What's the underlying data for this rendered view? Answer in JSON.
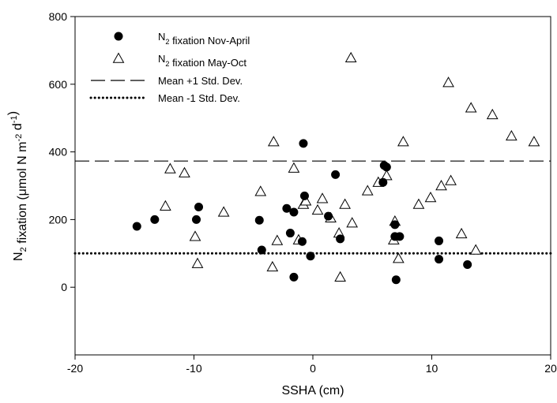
{
  "chart_data": {
    "type": "scatter",
    "xlabel": "SSHA (cm)",
    "ylabel_parts": [
      "N",
      "2",
      " fixation (",
      "μ",
      "mol N m",
      "-2",
      " d",
      "-1",
      ")"
    ],
    "xlim": [
      -20,
      20
    ],
    "ylim": [
      -200,
      800
    ],
    "xticks": [
      "-20",
      "-10",
      "0",
      "10",
      "20"
    ],
    "yticks": [
      "0",
      "200",
      "400",
      "600",
      "800"
    ],
    "grid": false,
    "legend_position": "top-left",
    "legend": [
      {
        "parts": [
          "N",
          "2",
          " fixation Nov-April"
        ],
        "marker": "filled-circle"
      },
      {
        "parts": [
          "N",
          "2",
          " fixation May-Oct"
        ],
        "marker": "open-triangle"
      },
      {
        "parts": [
          "Mean +1 Std. Dev."
        ],
        "marker": "dashed-line"
      },
      {
        "parts": [
          "Mean -1 Std. Dev."
        ],
        "marker": "dotted-line"
      }
    ],
    "series": [
      {
        "name": "N2 fixation Nov-April",
        "marker": "filled-circle",
        "points": [
          [
            -14.8,
            180
          ],
          [
            -13.3,
            200
          ],
          [
            -9.8,
            200
          ],
          [
            -9.6,
            237
          ],
          [
            -4.5,
            198
          ],
          [
            -4.3,
            110
          ],
          [
            -2.2,
            233
          ],
          [
            -1.9,
            160
          ],
          [
            -1.6,
            222
          ],
          [
            -1.6,
            30
          ],
          [
            -0.9,
            135
          ],
          [
            -0.8,
            425
          ],
          [
            -0.7,
            270
          ],
          [
            -0.2,
            92
          ],
          [
            1.3,
            210
          ],
          [
            1.9,
            333
          ],
          [
            2.3,
            143
          ],
          [
            5.9,
            310
          ],
          [
            6.0,
            360
          ],
          [
            6.2,
            355
          ],
          [
            6.9,
            185
          ],
          [
            6.9,
            150
          ],
          [
            7.0,
            22
          ],
          [
            7.3,
            150
          ],
          [
            10.6,
            137
          ],
          [
            10.6,
            83
          ],
          [
            13.0,
            67
          ]
        ]
      },
      {
        "name": "N2 fixation May-Oct",
        "marker": "open-triangle",
        "points": [
          [
            -12.4,
            240
          ],
          [
            -12.0,
            350
          ],
          [
            -10.8,
            338
          ],
          [
            -9.9,
            150
          ],
          [
            -9.7,
            70
          ],
          [
            -7.5,
            222
          ],
          [
            -4.4,
            283
          ],
          [
            -3.4,
            60
          ],
          [
            -3.3,
            430
          ],
          [
            -3.0,
            138
          ],
          [
            -1.6,
            352
          ],
          [
            -1.2,
            140
          ],
          [
            -0.8,
            245
          ],
          [
            -0.6,
            255
          ],
          [
            0.4,
            228
          ],
          [
            0.8,
            262
          ],
          [
            1.5,
            205
          ],
          [
            2.2,
            160
          ],
          [
            2.3,
            30
          ],
          [
            2.7,
            245
          ],
          [
            3.2,
            678
          ],
          [
            3.3,
            190
          ],
          [
            4.6,
            285
          ],
          [
            5.5,
            310
          ],
          [
            6.2,
            330
          ],
          [
            6.8,
            140
          ],
          [
            6.9,
            195
          ],
          [
            7.2,
            85
          ],
          [
            7.6,
            430
          ],
          [
            8.9,
            245
          ],
          [
            9.9,
            265
          ],
          [
            10.8,
            300
          ],
          [
            11.4,
            605
          ],
          [
            11.6,
            315
          ],
          [
            12.5,
            158
          ],
          [
            13.3,
            530
          ],
          [
            13.7,
            110
          ],
          [
            15.1,
            510
          ],
          [
            16.7,
            447
          ],
          [
            18.6,
            430
          ]
        ]
      }
    ],
    "reference_lines": [
      {
        "name": "Mean +1 Std. Dev.",
        "y": 373,
        "style": "dashed"
      },
      {
        "name": "Mean -1 Std. Dev.",
        "y": 100,
        "style": "dotted"
      }
    ]
  }
}
